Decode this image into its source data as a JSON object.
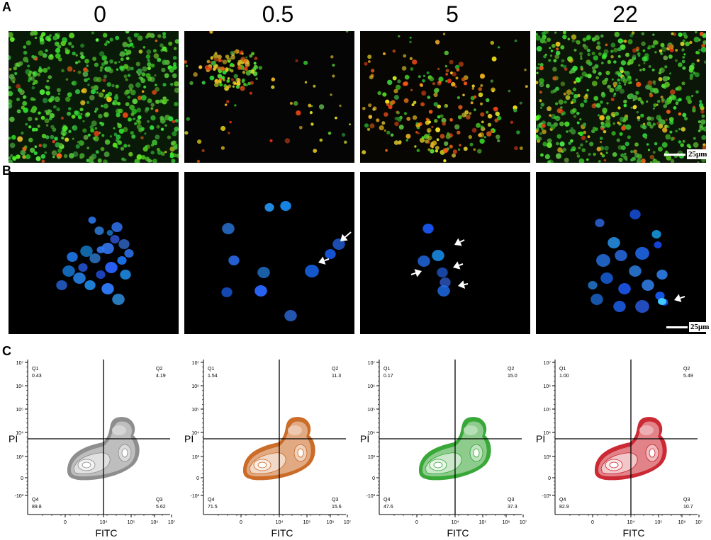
{
  "panels": {
    "a": "A",
    "b": "B",
    "c": "C"
  },
  "concentrations": [
    "0",
    "0.5",
    "5",
    "22"
  ],
  "scale_bar": "25μm",
  "flow_axes": {
    "x_label": "FITC",
    "y_label": "PI",
    "y_ticks": [
      "10⁷",
      "10⁶",
      "10⁵",
      "10⁴",
      "10³",
      "0",
      "-10³"
    ],
    "x_ticks": [
      "0",
      "10⁴",
      "10⁵",
      "10⁶",
      "10⁷"
    ]
  },
  "flow_plots": [
    {
      "color": "#888888",
      "q1": {
        "label": "Q1",
        "value": "0.43"
      },
      "q2": {
        "label": "Q2",
        "value": "4.19"
      },
      "q3": {
        "label": "Q3",
        "value": "5.62"
      },
      "q4": {
        "label": "Q4",
        "value": "89.8"
      }
    },
    {
      "color": "#c8641e",
      "q1": {
        "label": "Q1",
        "value": "1.54"
      },
      "q2": {
        "label": "Q2",
        "value": "11.3"
      },
      "q3": {
        "label": "Q3",
        "value": "15.6"
      },
      "q4": {
        "label": "Q4",
        "value": "71.5"
      }
    },
    {
      "color": "#2fa32f",
      "q1": {
        "label": "Q1",
        "value": "0.17"
      },
      "q2": {
        "label": "Q2",
        "value": "15.0"
      },
      "q3": {
        "label": "Q3",
        "value": "37.3"
      },
      "q4": {
        "label": "Q4",
        "value": "47.6"
      }
    },
    {
      "color": "#c81e28",
      "q1": {
        "label": "Q1",
        "value": "1.00"
      },
      "q2": {
        "label": "Q2",
        "value": "5.49"
      },
      "q3": {
        "label": "Q3",
        "value": "10.7"
      },
      "q4": {
        "label": "Q4",
        "value": "82.9"
      }
    }
  ]
}
